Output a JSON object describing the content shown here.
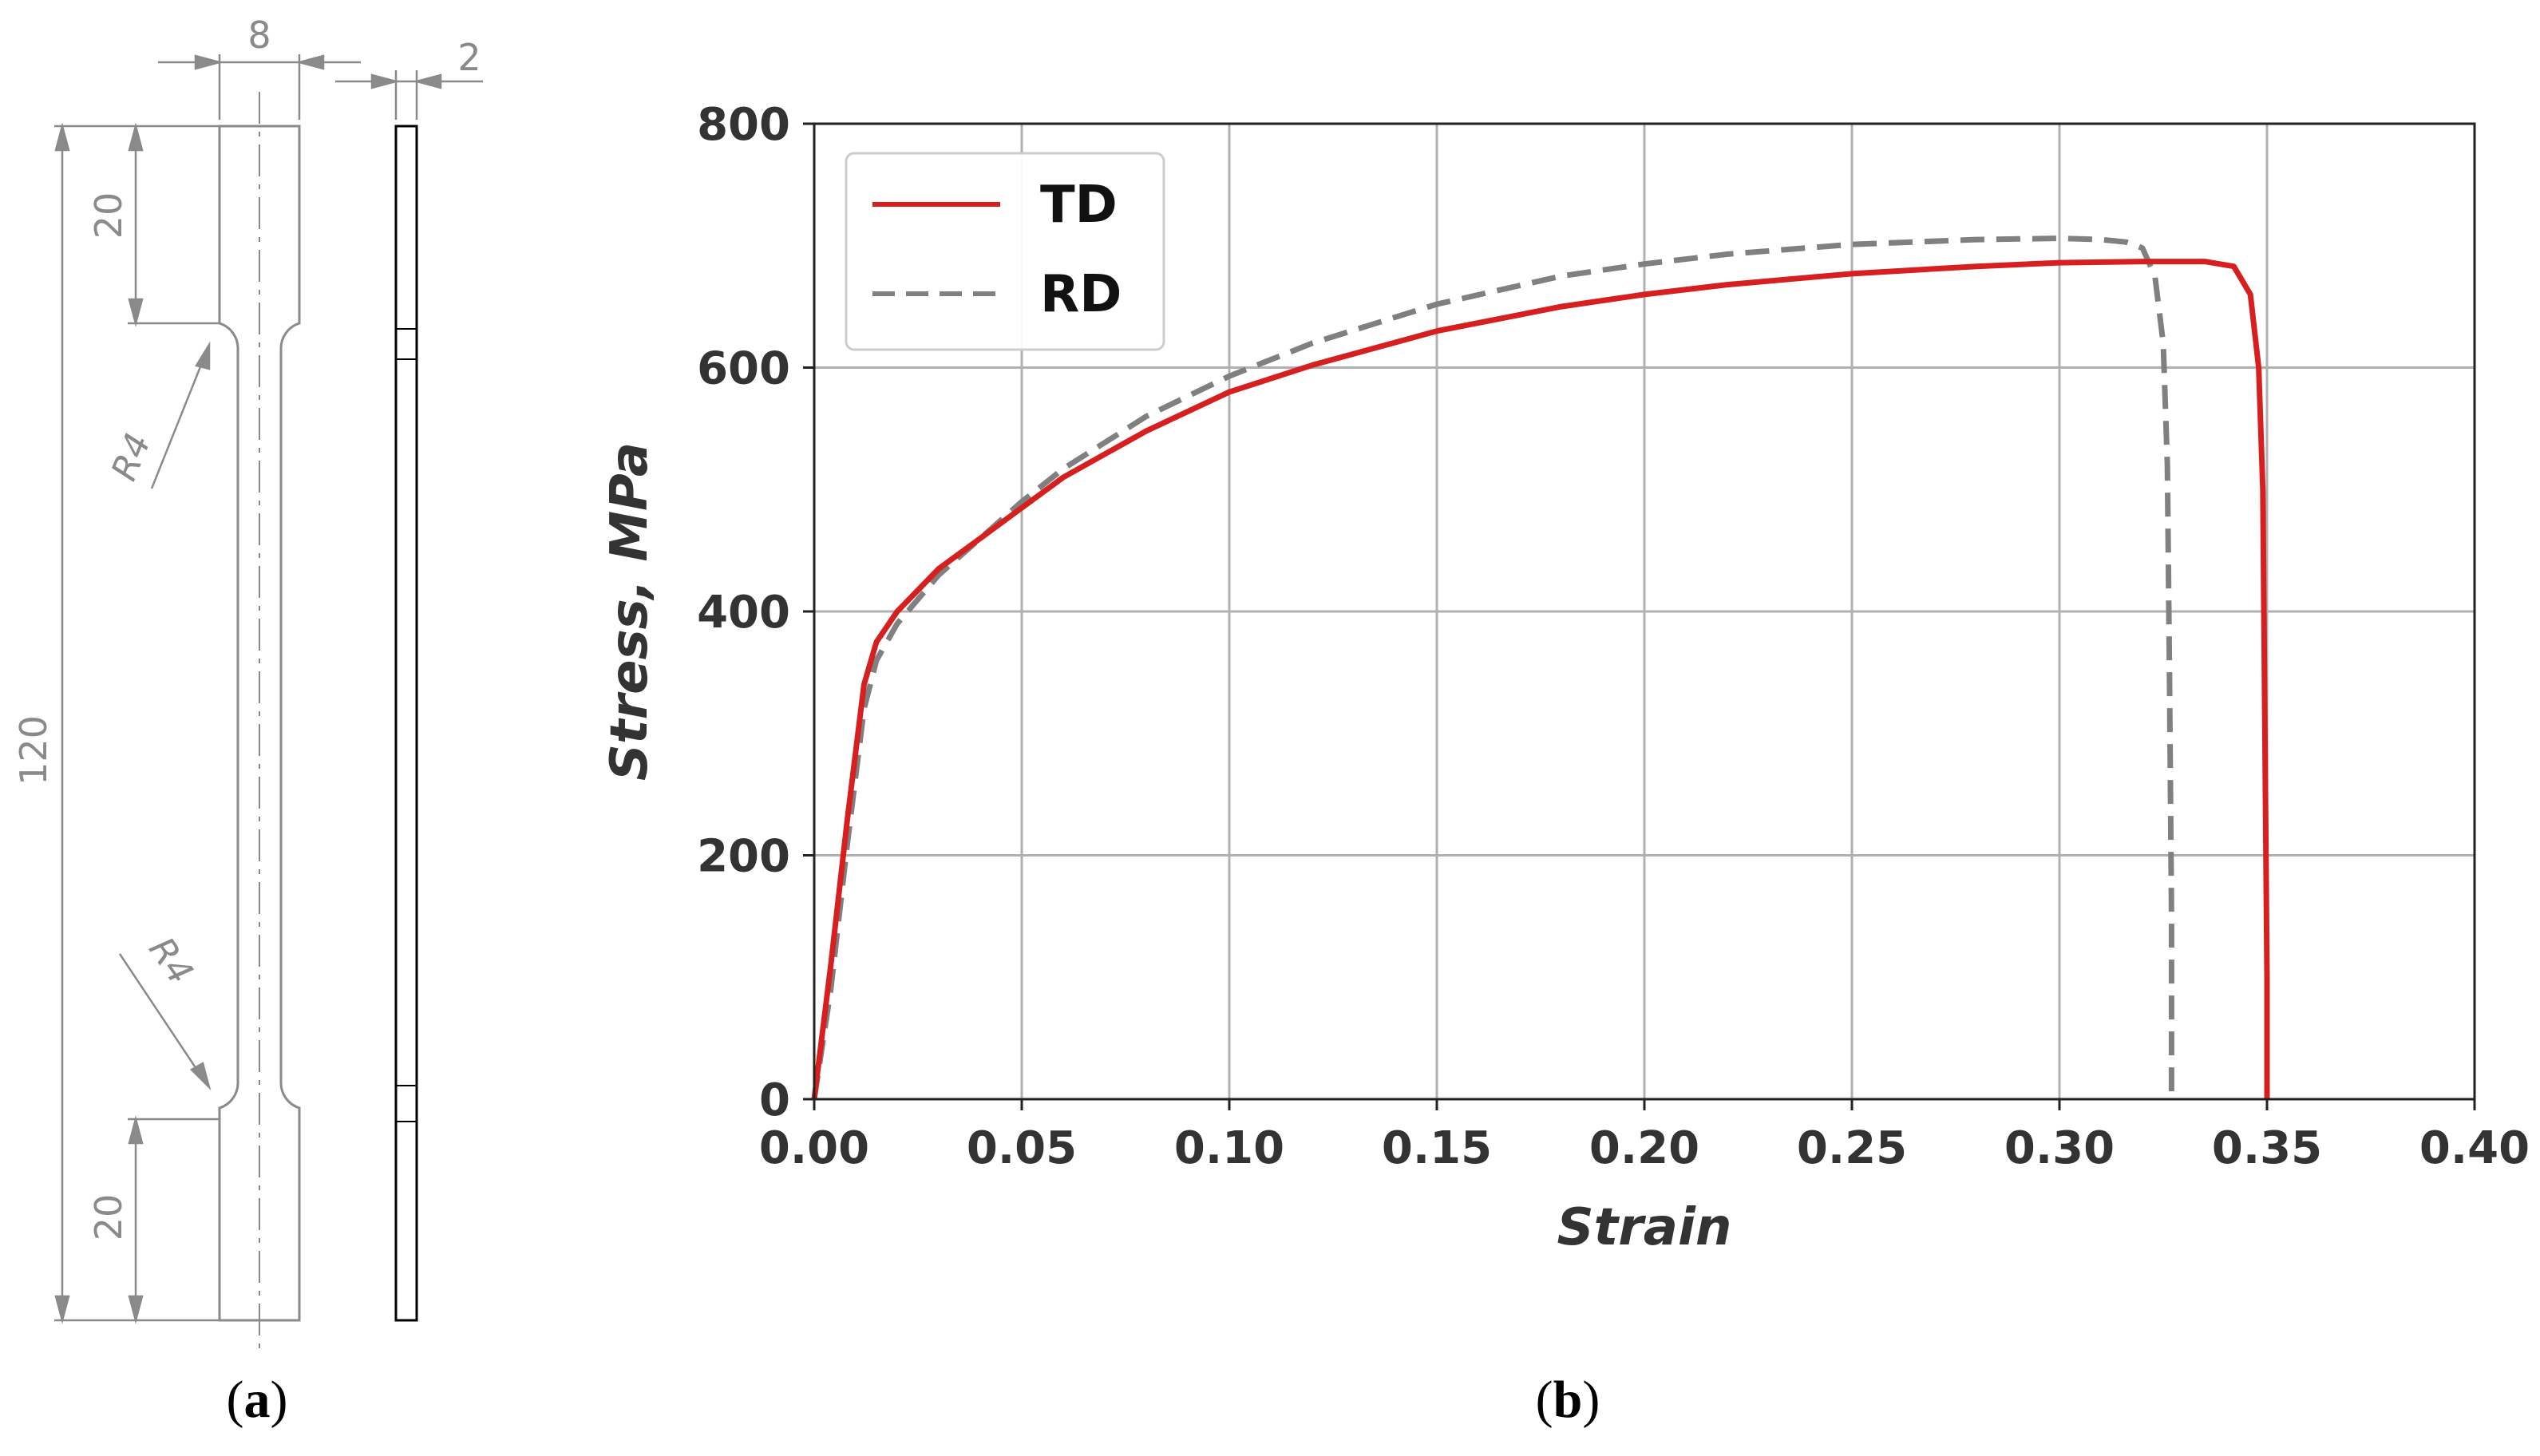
{
  "drawing": {
    "dim_width": "8",
    "dim_thickness": "2",
    "dim_length": "120",
    "dim_grip_top": "20",
    "dim_grip_bottom": "20",
    "radius_top": "R4",
    "radius_bottom": "R4",
    "label_open": "(",
    "label_letter": "a",
    "label_close": ")"
  },
  "chart_label": {
    "open": "(",
    "letter": "b",
    "close": ")"
  },
  "colors": {
    "td": "#d62020",
    "rd": "#808080",
    "grid": "#b0b0b0",
    "axis": "#222222"
  },
  "chart_data": {
    "type": "line",
    "title": "",
    "xlabel": "Strain",
    "ylabel": "Stress, MPa",
    "xlim": [
      0.0,
      0.4
    ],
    "ylim": [
      0,
      800
    ],
    "grid": true,
    "legend_position": "top-left",
    "x_ticks": [
      "0.00",
      "0.05",
      "0.10",
      "0.15",
      "0.20",
      "0.25",
      "0.30",
      "0.35",
      "0.40"
    ],
    "x_tick_values": [
      0.0,
      0.05,
      0.1,
      0.15,
      0.2,
      0.25,
      0.3,
      0.35,
      0.4
    ],
    "y_ticks": [
      "0",
      "200",
      "400",
      "600",
      "800"
    ],
    "y_tick_values": [
      0,
      200,
      400,
      600,
      800
    ],
    "series": [
      {
        "name": "TD",
        "style": "solid",
        "x": [
          0.0,
          0.004,
          0.008,
          0.012,
          0.015,
          0.02,
          0.03,
          0.04,
          0.05,
          0.06,
          0.08,
          0.1,
          0.12,
          0.15,
          0.18,
          0.2,
          0.22,
          0.25,
          0.28,
          0.3,
          0.32,
          0.335,
          0.342,
          0.346,
          0.348,
          0.349,
          0.3495,
          0.35,
          0.35
        ],
        "y": [
          0,
          110,
          230,
          340,
          375,
          400,
          435,
          460,
          485,
          510,
          548,
          580,
          602,
          630,
          650,
          660,
          668,
          677,
          683,
          686,
          687,
          687,
          683,
          660,
          600,
          500,
          300,
          100,
          0
        ]
      },
      {
        "name": "RD",
        "style": "dashed",
        "x": [
          0.0,
          0.004,
          0.008,
          0.012,
          0.015,
          0.02,
          0.03,
          0.04,
          0.05,
          0.06,
          0.08,
          0.1,
          0.12,
          0.15,
          0.18,
          0.2,
          0.22,
          0.25,
          0.28,
          0.3,
          0.31,
          0.316,
          0.32,
          0.323,
          0.325,
          0.326,
          0.3265,
          0.327,
          0.327
        ],
        "y": [
          0,
          90,
          210,
          320,
          360,
          390,
          430,
          460,
          490,
          517,
          560,
          593,
          620,
          652,
          675,
          685,
          693,
          701,
          705,
          706,
          705,
          703,
          698,
          675,
          620,
          520,
          350,
          150,
          0
        ]
      }
    ]
  }
}
